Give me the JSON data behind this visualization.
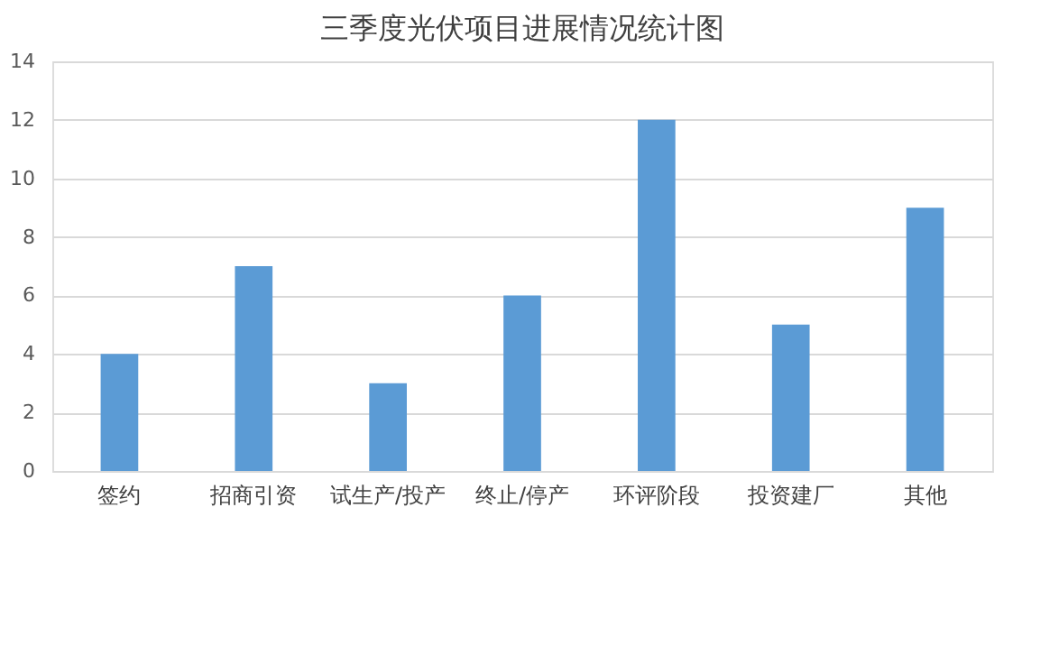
{
  "chart_data": {
    "type": "bar",
    "title": "三季度光伏项目进展情况统计图",
    "categories": [
      "签约",
      "招商引资",
      "试生产/投产",
      "终止/停产",
      "环评阶段",
      "投资建厂",
      "其他"
    ],
    "values": [
      4,
      7,
      3,
      6,
      12,
      5,
      9
    ],
    "color": "#5b9bd5",
    "ylim": [
      0,
      14
    ],
    "yticks": [
      0,
      2,
      4,
      6,
      8,
      10,
      12,
      14
    ],
    "grid": "y"
  }
}
